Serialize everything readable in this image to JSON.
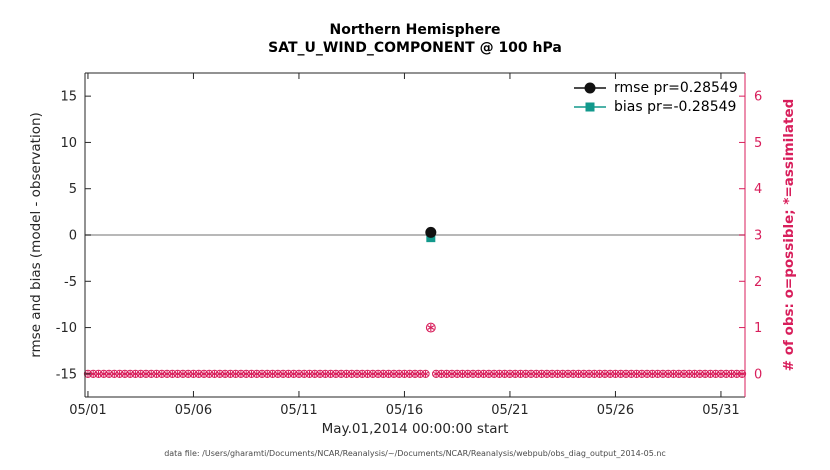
{
  "figure": {
    "caption": "data file: /Users/gharamti/Documents/NCAR/Reanalysis/~/Documents/NCAR/Reanalysis/webpub/obs_diag_output_2014-05.nc"
  },
  "chart_data": {
    "type": "line",
    "title": "Northern Hemisphere",
    "subtitle": "SAT_U_WIND_COMPONENT @ 100 hPa",
    "xlabel": "May.01,2014 00:00:00 start",
    "ylabel_left": "rmse and bias (model - observation)",
    "ylabel_right": "# of obs: o=possible; *=assimilated",
    "axis_color": "#262626",
    "legend_position": "top-right",
    "x_tick_labels": [
      "05/01",
      "05/06",
      "05/11",
      "05/16",
      "05/21",
      "05/26",
      "05/31"
    ],
    "x_tick_days": [
      1,
      6,
      11,
      16,
      21,
      26,
      31
    ],
    "xlim_days": [
      0.86,
      32.14
    ],
    "left_ylim": [
      -17.5,
      17.5
    ],
    "left_yticks": [
      -15,
      -10,
      -5,
      0,
      5,
      10,
      15
    ],
    "right_ylim": [
      -0.5,
      6.5
    ],
    "right_yticks": [
      0,
      1,
      2,
      3,
      4,
      5,
      6
    ],
    "zero_line": {
      "y": 0,
      "color": "#a0a0a0"
    },
    "series": [
      {
        "name": "rmse pr=0.28549",
        "color": "#111111",
        "marker": "circle",
        "points": [
          {
            "day": 17.25,
            "value": 0.28549
          }
        ]
      },
      {
        "name": "bias pr=-0.28549",
        "color": "#12998c",
        "marker": "square",
        "points": [
          {
            "day": 17.25,
            "value": -0.28549
          }
        ]
      }
    ],
    "obs_counts": {
      "color": "#d81e5b",
      "marker": "circle-asterisk",
      "zero_row": {
        "count": 0,
        "start_day": 1,
        "end_day": 32,
        "interval_days": 0.25,
        "skip_days": [
          17.25
        ]
      },
      "events": [
        {
          "day": 17.25,
          "possible": 1,
          "assimilated": 1
        }
      ]
    }
  }
}
